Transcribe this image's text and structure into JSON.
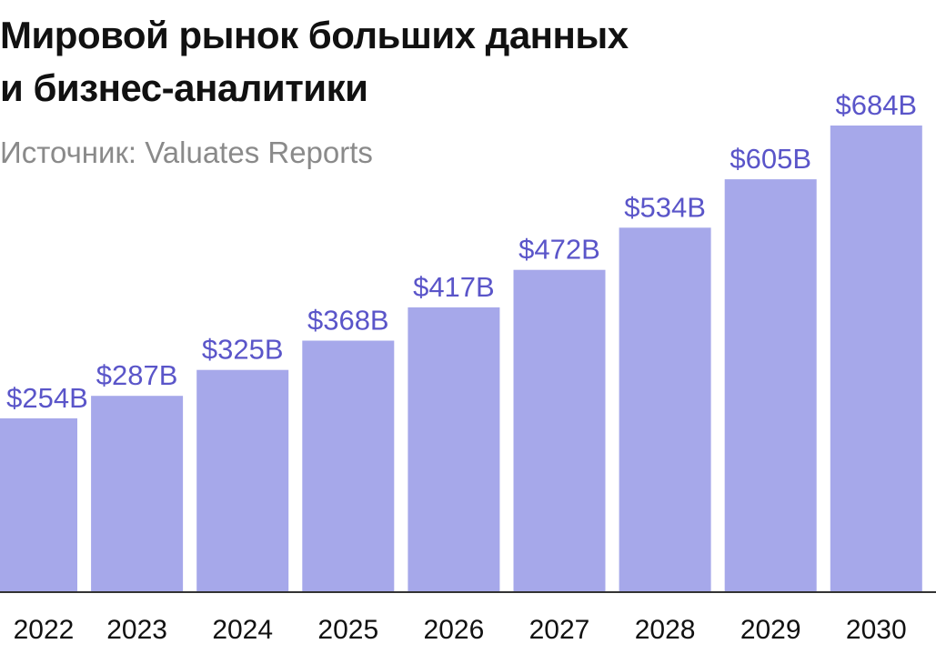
{
  "title_lines": [
    "Мировой рынок больших данных",
    "и бизнес-аналитики"
  ],
  "subtitle": "Источник: Valuates Reports",
  "chart_data": {
    "type": "bar",
    "title": "Мировой рынок больших данных и бизнес-аналитики",
    "subtitle": "Источник: Valuates Reports",
    "categories": [
      "2022",
      "2023",
      "2024",
      "2025",
      "2026",
      "2027",
      "2028",
      "2029",
      "2030"
    ],
    "values": [
      254,
      287,
      325,
      368,
      417,
      472,
      534,
      605,
      684
    ],
    "value_labels": [
      "$254B",
      "$287B",
      "$325B",
      "$368B",
      "$417B",
      "$472B",
      "$534B",
      "$605B",
      "$684B"
    ],
    "ylim": [
      0,
      684
    ],
    "grid": false,
    "colors": {
      "bar": "#a6a8ea",
      "value_label": "#5a55c9",
      "tick_label": "#111111"
    }
  }
}
